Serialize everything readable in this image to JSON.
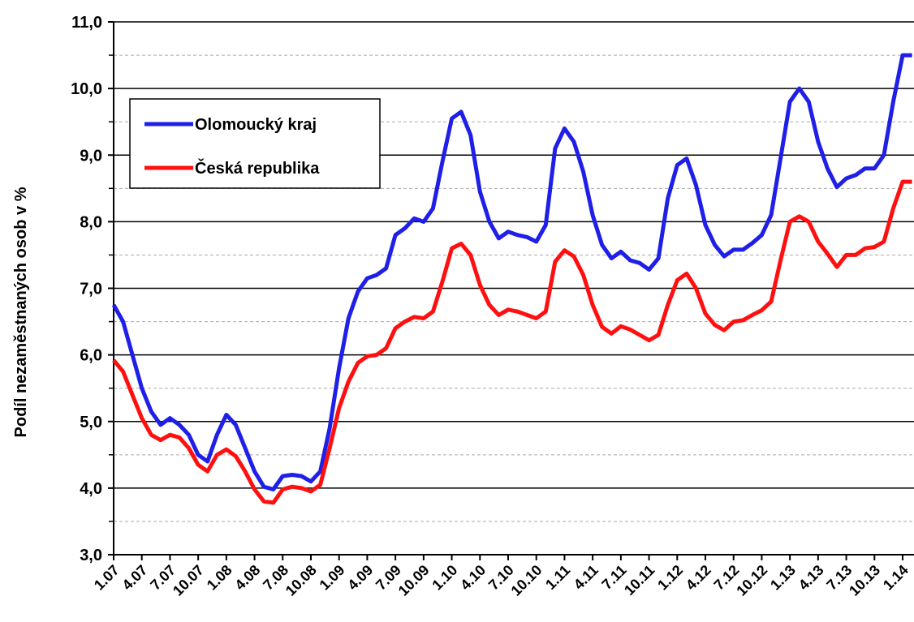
{
  "chart_data": {
    "type": "line",
    "y_label": "Podíl nezaměstnaných osob v %",
    "categories": [
      "1.07",
      null,
      null,
      "4.07",
      null,
      null,
      "7.07",
      null,
      null,
      "10.07",
      null,
      null,
      "1.08",
      null,
      null,
      "4.08",
      null,
      null,
      "7.08",
      null,
      null,
      "10.08",
      null,
      null,
      "1.09",
      null,
      null,
      "4.09",
      null,
      null,
      "7.09",
      null,
      null,
      "10.09",
      null,
      null,
      "1.10",
      null,
      null,
      "4.10",
      null,
      null,
      "7.10",
      null,
      null,
      "10.10",
      null,
      null,
      "1.11",
      null,
      null,
      "4.11",
      null,
      null,
      "7.11",
      null,
      null,
      "10.11",
      null,
      null,
      "1.12",
      null,
      null,
      "4.12",
      null,
      null,
      "7.12",
      null,
      null,
      "10.12",
      null,
      null,
      "1.13",
      null,
      null,
      "4.13",
      null,
      null,
      "7.13",
      null,
      null,
      "10.13",
      null,
      null,
      "1.14",
      null
    ],
    "series": [
      {
        "name": "Olomoucký kraj",
        "color": "#1f1fe8",
        "values": [
          6.75,
          6.5,
          6.0,
          5.5,
          5.15,
          4.95,
          5.05,
          4.95,
          4.8,
          4.5,
          4.4,
          4.8,
          5.1,
          4.95,
          4.6,
          4.25,
          4.02,
          3.98,
          4.18,
          4.2,
          4.18,
          4.1,
          4.25,
          4.9,
          5.8,
          6.55,
          6.95,
          7.15,
          7.2,
          7.3,
          7.8,
          7.9,
          8.05,
          8.0,
          8.2,
          8.9,
          9.55,
          9.65,
          9.3,
          8.45,
          8.0,
          7.75,
          7.85,
          7.8,
          7.77,
          7.7,
          7.95,
          9.1,
          9.4,
          9.2,
          8.75,
          8.1,
          7.65,
          7.45,
          7.55,
          7.42,
          7.38,
          7.28,
          7.45,
          8.35,
          8.85,
          8.95,
          8.55,
          7.95,
          7.65,
          7.48,
          7.58,
          7.58,
          7.68,
          7.8,
          8.1,
          8.95,
          9.8,
          10.0,
          9.8,
          9.2,
          8.8,
          8.52,
          8.65,
          8.7,
          8.8,
          8.8,
          9.0,
          9.8,
          10.5,
          10.5
        ]
      },
      {
        "name": "Česká republika",
        "color": "#ff1010",
        "values": [
          5.92,
          5.75,
          5.4,
          5.05,
          4.8,
          4.72,
          4.8,
          4.76,
          4.6,
          4.35,
          4.25,
          4.5,
          4.58,
          4.48,
          4.25,
          3.98,
          3.8,
          3.78,
          3.98,
          4.02,
          4.0,
          3.95,
          4.05,
          4.6,
          5.2,
          5.6,
          5.88,
          5.98,
          6.0,
          6.1,
          6.4,
          6.5,
          6.57,
          6.55,
          6.65,
          7.1,
          7.6,
          7.67,
          7.5,
          7.05,
          6.75,
          6.6,
          6.68,
          6.65,
          6.6,
          6.55,
          6.65,
          7.4,
          7.57,
          7.48,
          7.2,
          6.75,
          6.42,
          6.32,
          6.43,
          6.38,
          6.3,
          6.22,
          6.3,
          6.75,
          7.12,
          7.22,
          7.0,
          6.62,
          6.45,
          6.37,
          6.5,
          6.52,
          6.6,
          6.67,
          6.8,
          7.42,
          8.0,
          8.08,
          8.0,
          7.7,
          7.52,
          7.32,
          7.5,
          7.5,
          7.6,
          7.62,
          7.7,
          8.2,
          8.6,
          8.6
        ]
      }
    ],
    "ylim": [
      3,
      11
    ],
    "yticks": [
      {
        "value": 3,
        "label": "3,0"
      },
      {
        "value": 4,
        "label": "4,0"
      },
      {
        "value": 5,
        "label": "5,0"
      },
      {
        "value": 6,
        "label": "6,0"
      },
      {
        "value": 7,
        "label": "7,0"
      },
      {
        "value": 8,
        "label": "8,0"
      },
      {
        "value": 9,
        "label": "9,0"
      },
      {
        "value": 10,
        "label": "10,0"
      },
      {
        "value": 11,
        "label": "11,0"
      }
    ],
    "minor_yticks": [
      3.5,
      4.5,
      5.5,
      6.5,
      7.5,
      8.5,
      9.5,
      10.5
    ],
    "grid": true,
    "legend": "upper left"
  }
}
